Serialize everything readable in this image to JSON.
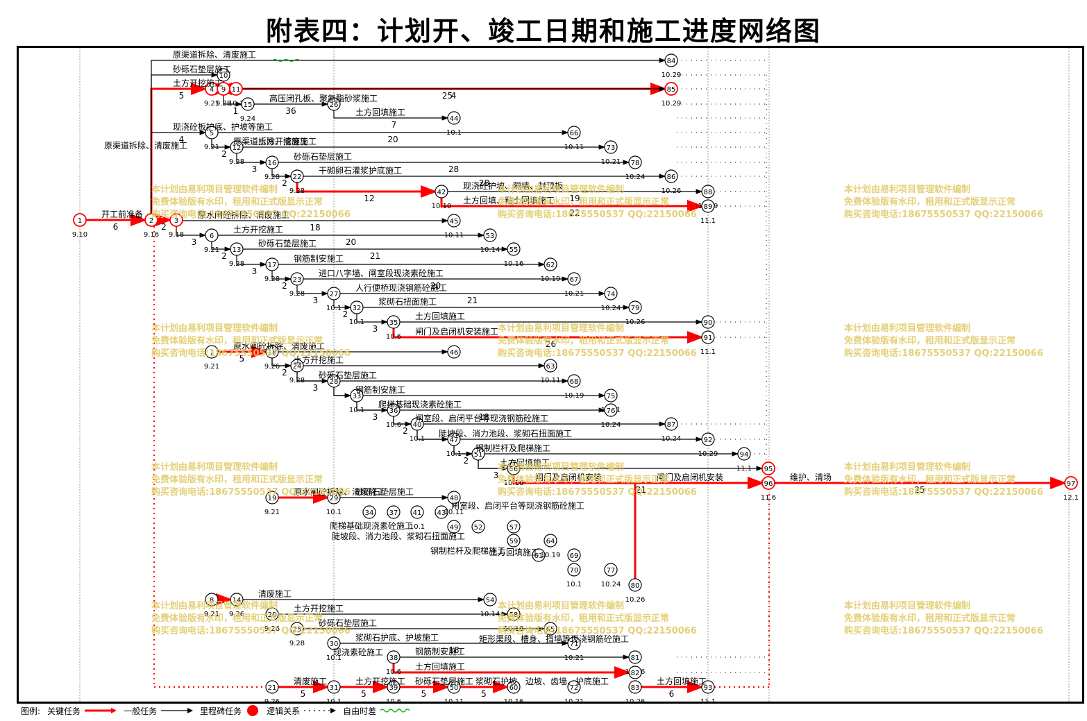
{
  "title": "附表四：计划开、竣工日期和施工进度网络图",
  "watermark": [
    "本计划由易利项目管理软件编制",
    "免费体验版有水印，租用和正式版显示正常",
    "购买咨询电话:18675550537 QQ:22150066"
  ],
  "colors": {
    "critical": "#ff0000",
    "normal": "#000000",
    "free_float": "#00aa00",
    "watermark": "#e2cc6a"
  },
  "legend": {
    "prefix": "图例:",
    "items": [
      "关键任务",
      "一般任务",
      "里程碑任务",
      "逻辑关系",
      "自由时差"
    ]
  },
  "nodes": [
    {
      "id": "1",
      "date": "9.10",
      "critical": true
    },
    {
      "id": "2",
      "date": "9.16",
      "critical": true
    },
    {
      "id": "3",
      "date": "9.18",
      "critical": true
    },
    {
      "id": "4",
      "date": "9.21",
      "critical": true
    },
    {
      "id": "9",
      "date": "9.28",
      "critical": true
    },
    {
      "id": "11",
      "date": "10.1",
      "critical": true
    },
    {
      "id": "10",
      "date": "",
      "critical": false
    },
    {
      "id": "15",
      "date": "9.24",
      "critical": false
    },
    {
      "id": "5",
      "date": "9.21",
      "critical": false
    },
    {
      "id": "12",
      "date": "9.28",
      "critical": false
    },
    {
      "id": "16",
      "date": "9.28",
      "critical": false
    },
    {
      "id": "22",
      "date": "9.28",
      "critical": false
    },
    {
      "id": "42",
      "date": "10.10",
      "critical": false
    },
    {
      "id": "26",
      "date": "",
      "critical": false
    },
    {
      "id": "44",
      "date": "10.1",
      "critical": false
    },
    {
      "id": "66",
      "date": "10.11",
      "critical": false
    },
    {
      "id": "73",
      "date": "10.21",
      "critical": false
    },
    {
      "id": "78",
      "date": "10.24",
      "critical": false
    },
    {
      "id": "86",
      "date": "10.26",
      "critical": false
    },
    {
      "id": "88",
      "date": "10.29",
      "critical": false
    },
    {
      "id": "89",
      "date": "11.1",
      "critical": false
    },
    {
      "id": "84",
      "date": "10.29",
      "critical": false
    },
    {
      "id": "85",
      "date": "10.29",
      "critical": true
    },
    {
      "id": "6",
      "date": "9.21",
      "critical": false
    },
    {
      "id": "13",
      "date": "9.28",
      "critical": false
    },
    {
      "id": "17",
      "date": "9.28",
      "critical": false
    },
    {
      "id": "23",
      "date": "9.28",
      "critical": false
    },
    {
      "id": "27",
      "date": "10.1",
      "critical": false
    },
    {
      "id": "32",
      "date": "10.1",
      "critical": false
    },
    {
      "id": "35",
      "date": "10.6",
      "critical": false
    },
    {
      "id": "45",
      "date": "10.11",
      "critical": false
    },
    {
      "id": "53",
      "date": "10.14",
      "critical": false
    },
    {
      "id": "55",
      "date": "10.16",
      "critical": false
    },
    {
      "id": "62",
      "date": "10.19",
      "critical": false
    },
    {
      "id": "67",
      "date": "10.21",
      "critical": false
    },
    {
      "id": "74",
      "date": "10.24",
      "critical": false
    },
    {
      "id": "79",
      "date": "10.26",
      "critical": false
    },
    {
      "id": "90",
      "date": "",
      "critical": false
    },
    {
      "id": "91",
      "date": "11.1",
      "critical": false
    },
    {
      "id": "7",
      "date": "9.21",
      "critical": false
    },
    {
      "id": "18",
      "date": "9.26",
      "critical": false
    },
    {
      "id": "24",
      "date": "9.28",
      "critical": false
    },
    {
      "id": "28",
      "date": "",
      "critical": false
    },
    {
      "id": "33",
      "date": "10.1",
      "critical": false
    },
    {
      "id": "36",
      "date": "10.6",
      "critical": false
    },
    {
      "id": "40",
      "date": "10.1",
      "critical": false
    },
    {
      "id": "47",
      "date": "10.1",
      "critical": false
    },
    {
      "id": "51",
      "date": "",
      "critical": false
    },
    {
      "id": "56",
      "date": "10.16",
      "critical": false
    },
    {
      "id": "46",
      "date": "",
      "critical": false
    },
    {
      "id": "63",
      "date": "10.11",
      "critical": false
    },
    {
      "id": "68",
      "date": "10.19",
      "critical": false
    },
    {
      "id": "75",
      "date": "10.21",
      "critical": false
    },
    {
      "id": "76",
      "date": "10.24",
      "critical": false
    },
    {
      "id": "87",
      "date": "10.24",
      "critical": false
    },
    {
      "id": "92",
      "date": "10.29",
      "critical": false
    },
    {
      "id": "94",
      "date": "11.1",
      "critical": false
    },
    {
      "id": "95",
      "date": "11.4",
      "critical": true
    },
    {
      "id": "96",
      "date": "11.6",
      "critical": true
    },
    {
      "id": "97",
      "date": "12.1",
      "critical": true
    },
    {
      "id": "19",
      "date": "9.21",
      "critical": false
    },
    {
      "id": "29",
      "date": "10.1",
      "critical": false
    },
    {
      "id": "34",
      "date": "",
      "critical": false
    },
    {
      "id": "37",
      "date": "",
      "critical": false
    },
    {
      "id": "41",
      "date": "10.1",
      "critical": false
    },
    {
      "id": "43",
      "date": "",
      "critical": false
    },
    {
      "id": "49",
      "date": "",
      "critical": false
    },
    {
      "id": "52",
      "date": "",
      "critical": false
    },
    {
      "id": "57",
      "date": "",
      "critical": false
    },
    {
      "id": "59",
      "date": "",
      "critical": false
    },
    {
      "id": "61",
      "date": "",
      "critical": false
    },
    {
      "id": "48",
      "date": "10.11",
      "critical": false
    },
    {
      "id": "64",
      "date": "10.19",
      "critical": false
    },
    {
      "id": "69",
      "date": "",
      "critical": false
    },
    {
      "id": "70",
      "date": "10.1",
      "critical": false
    },
    {
      "id": "77",
      "date": "10.24",
      "critical": false
    },
    {
      "id": "80",
      "date": "10.26",
      "critical": false
    },
    {
      "id": "8",
      "date": "9.21",
      "critical": false
    },
    {
      "id": "14",
      "date": "9.26",
      "critical": false
    },
    {
      "id": "20",
      "date": "9.26",
      "critical": false
    },
    {
      "id": "25",
      "date": "9.28",
      "critical": false
    },
    {
      "id": "30",
      "date": "10.1",
      "critical": false
    },
    {
      "id": "38",
      "date": "10.6",
      "critical": false
    },
    {
      "id": "54",
      "date": "10.14",
      "critical": false
    },
    {
      "id": "58",
      "date": "10.16",
      "critical": false
    },
    {
      "id": "65",
      "date": "",
      "critical": false
    },
    {
      "id": "71",
      "date": "10.21",
      "critical": false
    },
    {
      "id": "81",
      "date": "10.26",
      "critical": false
    },
    {
      "id": "82",
      "date": "",
      "critical": false
    },
    {
      "id": "21",
      "date": "9.26",
      "critical": false
    },
    {
      "id": "31",
      "date": "10.1",
      "critical": false
    },
    {
      "id": "39",
      "date": "10.6",
      "critical": false
    },
    {
      "id": "50",
      "date": "10.11",
      "critical": false
    },
    {
      "id": "60",
      "date": "10.16",
      "critical": false
    },
    {
      "id": "72",
      "date": "10.21",
      "critical": false
    },
    {
      "id": "83",
      "date": "10.26",
      "critical": false
    },
    {
      "id": "93",
      "date": "11.1",
      "critical": false
    }
  ],
  "activities": [
    {
      "from": "1",
      "to": "2",
      "name": "开工前准备",
      "dur": "6",
      "critical": true
    },
    {
      "from": "2",
      "to": "4",
      "name": "土方开挖施工",
      "dur": "5",
      "critical": true
    },
    {
      "from": "2",
      "to": "3",
      "name": "",
      "dur": "2",
      "critical": true
    },
    {
      "from": "4",
      "to": "9",
      "name": "",
      "dur": "",
      "critical": true
    },
    {
      "from": "9",
      "to": "11",
      "name": "",
      "dur": "",
      "critical": true
    },
    {
      "from": "11",
      "to": "85",
      "name": "",
      "dur": "4",
      "critical": true
    },
    {
      "from": "2",
      "to": "10",
      "name": "砂砾石垫层施工",
      "dur": "",
      "critical": false
    },
    {
      "from": "10",
      "to": "85",
      "name": "",
      "dur": "25",
      "critical": false
    },
    {
      "from": "2",
      "to": "84",
      "name": "原渠道拆除、清废施工",
      "dur": "",
      "critical": false
    },
    {
      "from": "9",
      "to": "15",
      "name": "",
      "dur": "1",
      "critical": false
    },
    {
      "from": "15",
      "to": "26",
      "name": "高压闭孔板、聚氨酯砂浆施工",
      "dur": "36",
      "critical": false
    },
    {
      "from": "26",
      "to": "44",
      "name": "土方回填施工",
      "dur": "7",
      "critical": false
    },
    {
      "from": "2",
      "to": "5",
      "name": "现浇砼板护底、护坡等施工",
      "dur": "4",
      "critical": false
    },
    {
      "from": "5",
      "to": "66",
      "name": "",
      "dur": "20",
      "critical": false
    },
    {
      "from": "5",
      "to": "12",
      "name": "原渠道拆除、清废施工",
      "dur": "2",
      "critical": false
    },
    {
      "from": "12",
      "to": "73",
      "name": "土方开挖施工",
      "dur": "",
      "critical": false
    },
    {
      "from": "12",
      "to": "16",
      "name": "",
      "dur": "3",
      "critical": false
    },
    {
      "from": "16",
      "to": "78",
      "name": "砂砾石垫层施工",
      "dur": "28",
      "critical": false
    },
    {
      "from": "16",
      "to": "22",
      "name": "",
      "dur": "2",
      "critical": false
    },
    {
      "from": "22",
      "to": "86",
      "name": "干砌卵石灌浆护底施工",
      "dur": "28",
      "critical": false
    },
    {
      "from": "22",
      "to": "42",
      "name": "",
      "dur": "12",
      "critical": true
    },
    {
      "from": "42",
      "to": "88",
      "name": "现浇砼护坡、隔墙、封顶板",
      "dur": "19",
      "critical": false
    },
    {
      "from": "42",
      "to": "89",
      "name": "土方回填、粘土回填施工",
      "dur": "22",
      "critical": true
    },
    {
      "from": "3",
      "to": "45",
      "name": "原水闸砼拆除、清废施工",
      "dur": "18",
      "critical": false
    },
    {
      "from": "3",
      "to": "6",
      "name": "",
      "dur": "3",
      "critical": false
    },
    {
      "from": "6",
      "to": "53",
      "name": "土方开挖施工",
      "dur": "20",
      "critical": false
    },
    {
      "from": "6",
      "to": "13",
      "name": "",
      "dur": "2",
      "critical": false
    },
    {
      "from": "13",
      "to": "55",
      "name": "砂砾石垫层施工",
      "dur": "21",
      "critical": false
    },
    {
      "from": "13",
      "to": "17",
      "name": "",
      "dur": "3",
      "critical": false
    },
    {
      "from": "17",
      "to": "62",
      "name": "钢筋制安施工",
      "dur": "",
      "critical": false
    },
    {
      "from": "17",
      "to": "23",
      "name": "",
      "dur": "2",
      "critical": false
    },
    {
      "from": "23",
      "to": "67",
      "name": "进口八字墙、闸室段现浇素砼施工",
      "dur": "20",
      "critical": false
    },
    {
      "from": "23",
      "to": "27",
      "name": "",
      "dur": "3",
      "critical": false
    },
    {
      "from": "27",
      "to": "74",
      "name": "人行便桥现浇钢筋砼施工",
      "dur": "21",
      "critical": false
    },
    {
      "from": "27",
      "to": "32",
      "name": "",
      "dur": "2",
      "critical": false
    },
    {
      "from": "32",
      "to": "79",
      "name": "浆砌石扭面施工",
      "dur": "",
      "critical": false
    },
    {
      "from": "32",
      "to": "35",
      "name": "",
      "dur": "3",
      "critical": false
    },
    {
      "from": "35",
      "to": "90",
      "name": "土方回填施工",
      "dur": "",
      "critical": false
    },
    {
      "from": "35",
      "to": "91",
      "name": "闸门及启闭机安装施工",
      "dur": "26",
      "critical": true
    },
    {
      "from": "7",
      "to": "46",
      "name": "原水闸砼拆除、清废施工",
      "dur": "",
      "critical": false
    },
    {
      "from": "7",
      "to": "18",
      "name": "",
      "dur": "5",
      "critical": true
    },
    {
      "from": "18",
      "to": "63",
      "name": "土方开挖施工",
      "dur": "",
      "critical": false
    },
    {
      "from": "18",
      "to": "24",
      "name": "",
      "dur": "2",
      "critical": false
    },
    {
      "from": "24",
      "to": "68",
      "name": "砂砾石垫层施工",
      "dur": "",
      "critical": false
    },
    {
      "from": "24",
      "to": "28",
      "name": "",
      "dur": "3",
      "critical": false
    },
    {
      "from": "28",
      "to": "75",
      "name": "钢筋制安施工",
      "dur": "",
      "critical": false
    },
    {
      "from": "28",
      "to": "33",
      "name": "",
      "dur": "",
      "critical": false
    },
    {
      "from": "33",
      "to": "76",
      "name": "爬梯基础现浇素砼施工",
      "dur": "18",
      "critical": false
    },
    {
      "from": "33",
      "to": "36",
      "name": "",
      "dur": "3",
      "critical": false
    },
    {
      "from": "36",
      "to": "87",
      "name": "闸室段、启闭平台等现浇钢筋砼施工",
      "dur": "",
      "critical": false
    },
    {
      "from": "36",
      "to": "40",
      "name": "",
      "dur": "2",
      "critical": false
    },
    {
      "from": "40",
      "to": "92",
      "name": "陡坡段、消力池段、浆砌石扭面施工",
      "dur": "",
      "critical": false
    },
    {
      "from": "40",
      "to": "47",
      "name": "",
      "dur": "",
      "critical": false
    },
    {
      "from": "47",
      "to": "94",
      "name": "钢制栏杆及爬梯施工",
      "dur": "",
      "critical": false
    },
    {
      "from": "47",
      "to": "51",
      "name": "",
      "dur": "2",
      "critical": false
    },
    {
      "from": "51",
      "to": "95",
      "name": "土方回填施工",
      "dur": "",
      "critical": false
    },
    {
      "from": "51",
      "to": "56",
      "name": "",
      "dur": "3",
      "critical": false
    },
    {
      "from": "56",
      "to": "96",
      "name": "闸门及启闭机安装",
      "dur": "21",
      "critical": true
    },
    {
      "from": "96",
      "to": "97",
      "name": "维护、清场",
      "dur": "25",
      "critical": true
    },
    {
      "from": "19",
      "to": "29",
      "name": "原水闸砼拆除、清废施工",
      "dur": "",
      "critical": true
    },
    {
      "from": "29",
      "to": "48",
      "name": "砂砾石垫层施工",
      "dur": "",
      "critical": false
    },
    {
      "from": "80",
      "to": "96",
      "name": "闸门及启闭机安装",
      "dur": "",
      "critical": true
    },
    {
      "from": "8",
      "to": "14",
      "name": "",
      "dur": "",
      "critical": true
    },
    {
      "from": "14",
      "to": "54",
      "name": "清废施工",
      "dur": "",
      "critical": false
    },
    {
      "from": "20",
      "to": "58",
      "name": "土方开挖施工",
      "dur": "",
      "critical": false
    },
    {
      "from": "25",
      "to": "65",
      "name": "砂砾石垫层施工",
      "dur": "",
      "critical": false
    },
    {
      "from": "30",
      "to": "71",
      "name": "浆砌石护底、护坡施工",
      "dur": "18",
      "critical": false
    },
    {
      "from": "38",
      "to": "81",
      "name": "钢筋制安施工",
      "dur": "",
      "critical": false
    },
    {
      "from": "38",
      "to": "82",
      "name": "土方回填施工",
      "dur": "",
      "critical": true
    },
    {
      "from": "21",
      "to": "31",
      "name": "清废施工",
      "dur": "5",
      "critical": true
    },
    {
      "from": "31",
      "to": "39",
      "name": "土方开挖施工",
      "dur": "5",
      "critical": true
    },
    {
      "from": "39",
      "to": "50",
      "name": "砂砾石垫层施工",
      "dur": "5",
      "critical": true
    },
    {
      "from": "50",
      "to": "60",
      "name": "浆砌石护坡、边坡、齿墙、护底施工",
      "dur": "5",
      "critical": true
    },
    {
      "from": "83",
      "to": "93",
      "name": "土方回填施工",
      "dur": "6",
      "critical": true
    }
  ],
  "extra_labels": [
    "原渠道拆除、清废施工",
    "矩形渠段、槽身、挡墙等现浇钢筋砼施工",
    "闸室段、启闭平台等现浇钢筋砼施工",
    "爬梯基础现浇素砼施工",
    "陡坡段、消力池段、浆砌石扭面施工",
    "钢制栏杆及爬梯施工",
    "土方回填施工",
    "现浇素砼施工"
  ]
}
